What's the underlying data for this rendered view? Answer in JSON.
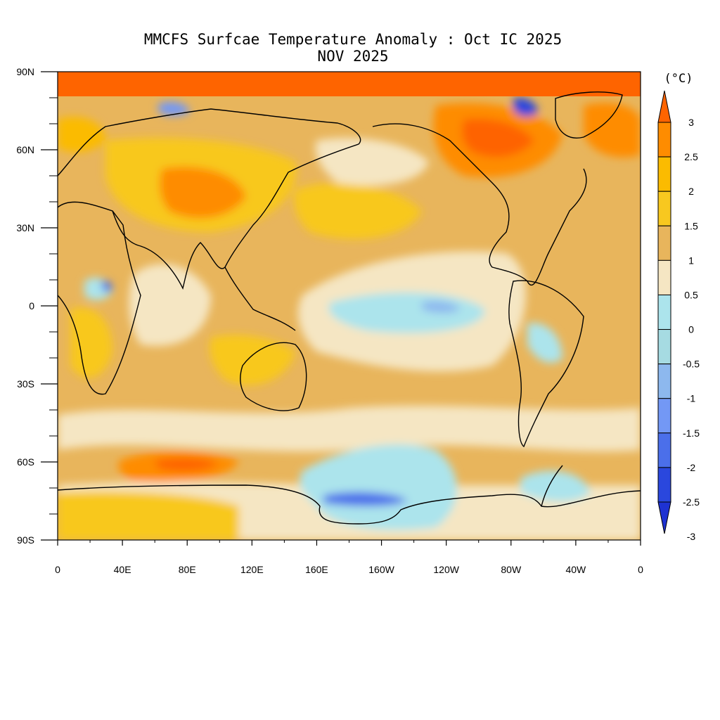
{
  "title": {
    "line1": "MMCFS Surfcae Temperature Anomaly : Oct IC 2025",
    "line2": "NOV 2025"
  },
  "map": {
    "projection": "cylindrical-equidistant",
    "lon_range_labels": [
      "0",
      "40E",
      "80E",
      "120E",
      "160E",
      "160W",
      "120W",
      "80W",
      "40W",
      "0"
    ],
    "lat_tick_labels": [
      "90N",
      "60N",
      "30N",
      "0",
      "30S",
      "60S",
      "90S"
    ],
    "lat_values": [
      90,
      60,
      30,
      0,
      -30,
      -60,
      -90
    ],
    "lon_values": [
      0,
      40,
      80,
      120,
      160,
      200,
      240,
      280,
      320,
      360
    ]
  },
  "colorbar": {
    "unit": "(°C)",
    "levels": [
      "3",
      "2.5",
      "2",
      "1.5",
      "1",
      "0.5",
      "0",
      "-0.5",
      "-1",
      "-1.5",
      "-2",
      "-2.5",
      "-3"
    ],
    "colors_top_to_bottom": [
      "#fe6400",
      "#fe8c00",
      "#fbbb00",
      "#f8c81f",
      "#e8b55c",
      "#f5e6c3",
      "#ace4ec",
      "#a6dbe2",
      "#8db8ee",
      "#7398f5",
      "#4b6fea",
      "#2a47dd",
      "#1e32d2"
    ]
  },
  "chart_data": {
    "type": "heatmap",
    "title": "MMCFS Surfcae Temperature Anomaly : Oct IC 2025",
    "subtitle": "NOV 2025",
    "colorbar_unit": "(°C)",
    "levels": [
      -3,
      -2.5,
      -2,
      -1.5,
      -1,
      -0.5,
      0,
      0.5,
      1,
      1.5,
      2,
      2.5,
      3
    ],
    "xlim": [
      0,
      360
    ],
    "ylim": [
      -90,
      90
    ]
  }
}
